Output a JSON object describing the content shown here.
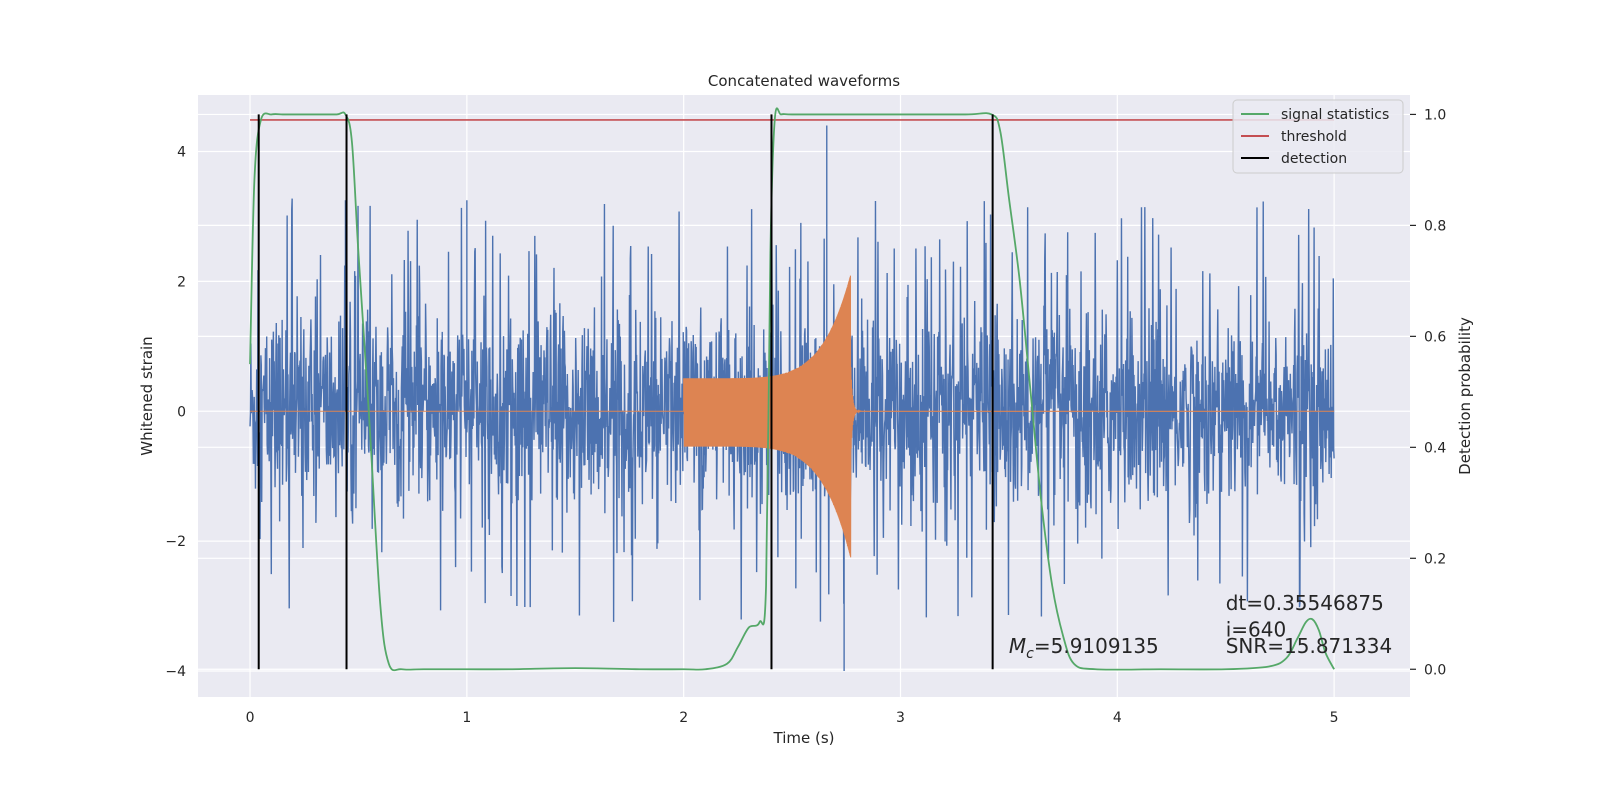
{
  "chart_data": {
    "type": "line",
    "title": "Concatenated waveforms",
    "xlabel": "Time (s)",
    "ylabel": "Whitened strain",
    "ylabel_right": "Detection probability",
    "xlim": [
      -0.24,
      5.35
    ],
    "ylim": [
      -4.4,
      4.87
    ],
    "ylim_right": [
      -0.05,
      1.035
    ],
    "x_ticks": [
      0,
      1,
      2,
      3,
      4,
      5
    ],
    "y_ticks": [
      -4,
      -2,
      0,
      2,
      4
    ],
    "y_tick_labels": [
      "−4",
      "−2",
      "0",
      "2",
      "4"
    ],
    "y_ticks_right": [
      0.0,
      0.2,
      0.4,
      0.6,
      0.8,
      1.0
    ],
    "y_tick_labels_right": [
      "0.0",
      "0.2",
      "0.4",
      "0.6",
      "0.8",
      "1.0"
    ],
    "grid": true,
    "legend_position": "top-right",
    "series": [
      {
        "name": "signal statistics",
        "color": "#55a868",
        "axis": "right",
        "x": [
          0.0,
          0.02,
          0.05,
          0.1,
          0.15,
          0.2,
          0.3,
          0.4,
          0.44,
          0.47,
          0.5,
          0.55,
          0.6,
          0.64,
          0.7,
          0.8,
          1.0,
          1.2,
          1.5,
          1.8,
          2.0,
          2.1,
          2.2,
          2.25,
          2.3,
          2.35,
          2.38,
          2.4,
          2.42,
          2.45,
          2.5,
          2.7,
          3.0,
          3.3,
          3.42,
          3.46,
          3.5,
          3.55,
          3.6,
          3.65,
          3.7,
          3.75,
          3.8,
          3.9,
          4.2,
          4.5,
          4.7,
          4.78,
          4.83,
          4.87,
          4.9,
          4.93,
          4.96,
          5.0
        ],
        "y": [
          0.55,
          0.88,
          0.99,
          1.0,
          1.0,
          1.0,
          1.0,
          1.0,
          1.0,
          0.95,
          0.75,
          0.45,
          0.12,
          0.01,
          0.0,
          0.0,
          0.0,
          0.0,
          0.002,
          0.0,
          0.0,
          0.0,
          0.01,
          0.04,
          0.075,
          0.085,
          0.15,
          0.75,
          0.99,
          1.0,
          1.0,
          1.0,
          1.0,
          1.0,
          1.0,
          0.97,
          0.85,
          0.7,
          0.5,
          0.3,
          0.15,
          0.06,
          0.01,
          0.0,
          0.0,
          0.0,
          0.005,
          0.02,
          0.055,
          0.085,
          0.09,
          0.07,
          0.03,
          0.0
        ]
      },
      {
        "name": "threshold",
        "color": "#c44e52",
        "axis": "right",
        "x": [
          0.0,
          5.0
        ],
        "y": [
          0.99,
          0.99
        ]
      },
      {
        "name": "detection",
        "color": "#000000",
        "axis": "right",
        "x_positions": [
          0.04,
          0.445,
          2.405,
          3.425
        ],
        "y_range": [
          0.0,
          1.0
        ]
      }
    ],
    "strain_trace": {
      "color": "#4c72b0",
      "x_range": [
        0.0,
        5.0
      ],
      "typical_range": [
        -1.8,
        2.0
      ],
      "peak_max": 4.4,
      "peak_min": -4.0
    },
    "template_trace": {
      "color": "#dd8452",
      "x_start": 2.0,
      "x_peak": 2.77,
      "start_amplitude": 0.5,
      "peak_max": 2.1,
      "peak_min": -2.25
    },
    "annotations": [
      {
        "text": "dt=0.35546875",
        "x": 4.5,
        "y": -3.06
      },
      {
        "text": " i=640",
        "x": 4.5,
        "y": -3.47
      },
      {
        "text": "SNR=15.871334",
        "x": 4.5,
        "y": -3.72
      },
      {
        "text_pre": "M",
        "text_sub": "c",
        "text_post": "=5.9109135",
        "x": 3.5,
        "y": -3.72
      }
    ]
  }
}
